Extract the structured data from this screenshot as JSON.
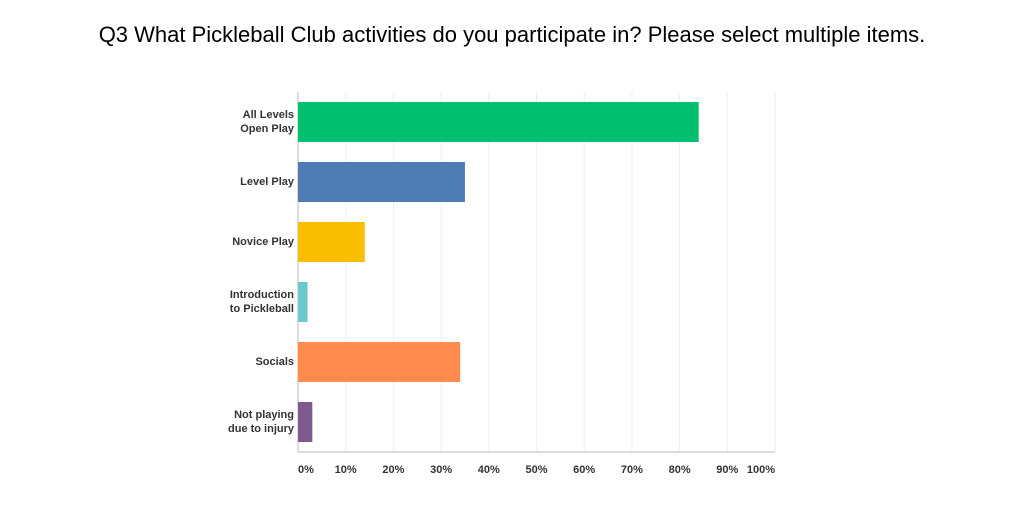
{
  "chart_data": {
    "type": "bar",
    "orientation": "horizontal",
    "title": "Q3 What Pickleball Club activities do you participate in? Please select multiple items.",
    "categories": [
      "All Levels Open Play",
      "Level Play",
      "Novice Play",
      "Introduction to Pickleball",
      "Socials",
      "Not playing due to injury"
    ],
    "values": [
      84,
      35,
      14,
      2,
      34,
      3
    ],
    "colors": [
      "#00bf6f",
      "#507cb6",
      "#f9be00",
      "#6bc8cd",
      "#ff8b4f",
      "#7d5b8f"
    ],
    "xlim": [
      0,
      100
    ],
    "xticks": [
      {
        "value": 0,
        "label": "0%"
      },
      {
        "value": 10,
        "label": "10%"
      },
      {
        "value": 20,
        "label": "20%"
      },
      {
        "value": 30,
        "label": "30%"
      },
      {
        "value": 40,
        "label": "40%"
      },
      {
        "value": 50,
        "label": "50%"
      },
      {
        "value": 60,
        "label": "60%"
      },
      {
        "value": 70,
        "label": "70%"
      },
      {
        "value": 80,
        "label": "80%"
      },
      {
        "value": 90,
        "label": "90%"
      },
      {
        "value": 100,
        "label": "100%"
      }
    ],
    "grid": true
  }
}
